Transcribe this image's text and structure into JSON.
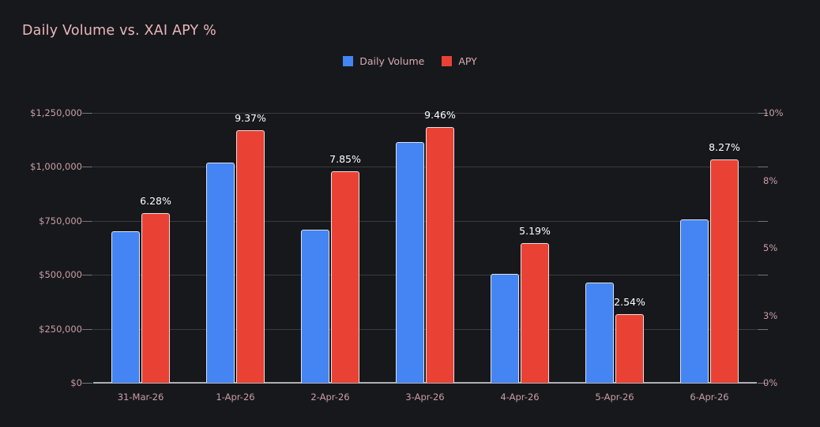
{
  "title": "Daily Volume vs. XAI APY %",
  "legend": [
    {
      "label": "Daily Volume",
      "color": "#4484f3"
    },
    {
      "label": "APY",
      "color": "#e94235"
    }
  ],
  "colors": {
    "background": "#17181c",
    "title_text": "#e9b7bb",
    "axis_text": "#c89ea3",
    "legend_text": "#d5adb2",
    "data_label_text": "#ffffff",
    "gridline": "#3a3b40",
    "zero_line": "#aeb0b4",
    "bar_volume": "#4484f3",
    "bar_apy": "#e94235",
    "bar_border": "#e8e8e8"
  },
  "chart_data": {
    "type": "bar",
    "title": "Daily Volume vs. XAI APY %",
    "categories": [
      "31-Mar-26",
      "1-Apr-26",
      "2-Apr-26",
      "3-Apr-26",
      "4-Apr-26",
      "5-Apr-26",
      "6-Apr-26"
    ],
    "series": [
      {
        "name": "Daily Volume",
        "axis": "left",
        "color": "#4484f3",
        "values": [
          700000,
          1020000,
          710000,
          1115000,
          505000,
          465000,
          755000
        ]
      },
      {
        "name": "APY",
        "axis": "right",
        "color": "#e94235",
        "values": [
          6.28,
          9.37,
          7.85,
          9.46,
          5.19,
          2.54,
          8.27
        ],
        "data_labels": [
          "6.28%",
          "9.37%",
          "7.85%",
          "9.46%",
          "5.19%",
          "2.54%",
          "8.27%"
        ]
      }
    ],
    "left_axis": {
      "min": 0,
      "max": 1250000,
      "ticks": [
        {
          "label": "$0",
          "value": 0
        },
        {
          "label": "$250,000",
          "value": 250000
        },
        {
          "label": "$500,000",
          "value": 500000
        },
        {
          "label": "$750,000",
          "value": 750000
        },
        {
          "label": "$1,000,000",
          "value": 1000000
        },
        {
          "label": "$1,250,000",
          "value": 1250000
        }
      ]
    },
    "right_axis": {
      "min": 0,
      "max": 10,
      "ticks": [
        {
          "label": "0%",
          "value": 0
        },
        {
          "label": "3%",
          "value": 2.5
        },
        {
          "label": "5%",
          "value": 5
        },
        {
          "label": "8%",
          "value": 7.5
        },
        {
          "label": "10%",
          "value": 10
        }
      ]
    },
    "legend_position": "top-center",
    "grid": true
  }
}
